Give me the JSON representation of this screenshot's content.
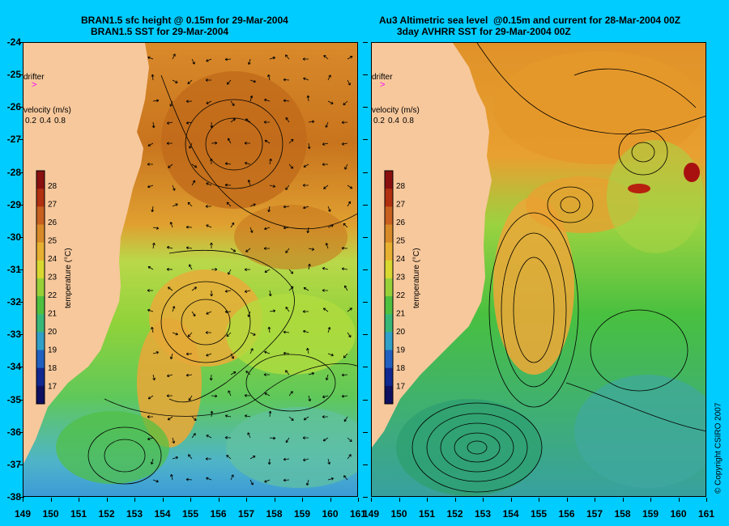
{
  "left_panel": {
    "title_line1": "BRAN1.5 sfc height @ 0.15m for 29-Mar-2004",
    "title_line2": "BRAN1.5 SST for 29-Mar-2004"
  },
  "right_panel": {
    "title_line1": "Au3 Altimetric sea level  @0.15m and current for 28-Mar-2004 00Z",
    "title_line2": "3day AVHRR SST for 29-Mar-2004 00Z"
  },
  "latitude_labels": [
    "-24",
    "-25",
    "-26",
    "-27",
    "-28",
    "-29",
    "-30",
    "-31",
    "-32",
    "-33",
    "-34",
    "-35",
    "-36",
    "-37",
    "-38"
  ],
  "longitude_labels": [
    "149",
    "150",
    "151",
    "152",
    "153",
    "154",
    "155",
    "156",
    "157",
    "158",
    "159",
    "160",
    "161"
  ],
  "legend": {
    "drifter_label": "drifter",
    "velocity_label": "velocity (m/s)",
    "velocity_scale": [
      "0.2",
      "0.4",
      "0.8"
    ],
    "temp_axis_label": "temperature (°C)",
    "temp_ticks": [
      "28",
      "27",
      "26",
      "25",
      "24",
      "23",
      "22",
      "21",
      "20",
      "19",
      "18",
      "17"
    ]
  },
  "copyright": "© Copyright CSIRO 2007",
  "colors": {
    "background": "#00ccff",
    "land": "#f7c89c",
    "drifter": "#ff00ff"
  }
}
